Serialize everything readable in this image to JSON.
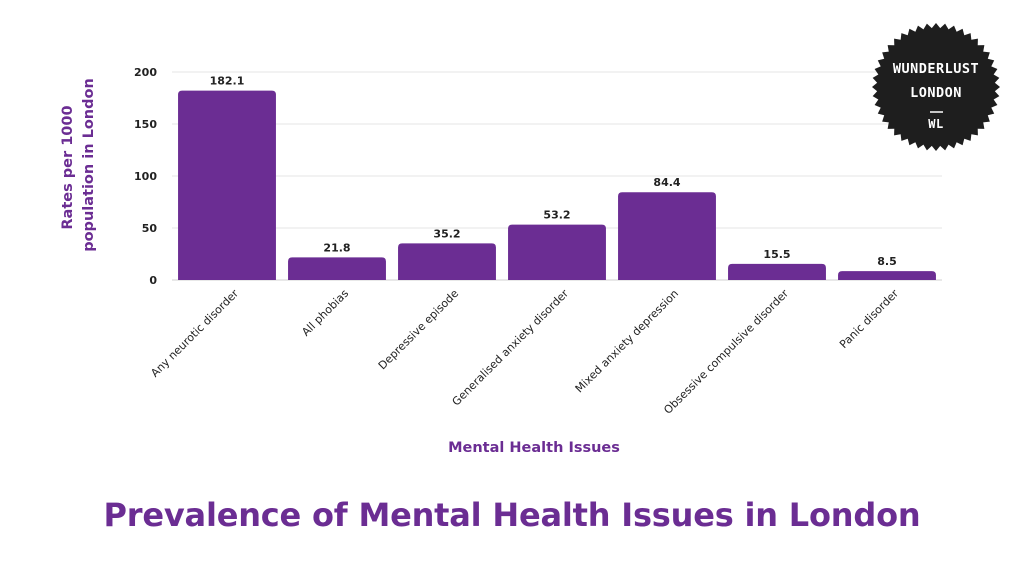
{
  "logo": {
    "line1": "WUNDERLUST",
    "line2": "LONDON",
    "line3": "WL",
    "colors": {
      "background": "#1e1e1e",
      "text": "#ffffff"
    }
  },
  "title": "Prevalence of Mental Health Issues in London",
  "colors": {
    "accent": "#6b2d93",
    "bar": "#6b2d93",
    "grid": "#e6e6e6",
    "text": "#222222"
  },
  "chart_data": {
    "type": "bar",
    "categories": [
      "Any neurotic disorder",
      "All phobias",
      "Depressive episode",
      "Generalised anxiety disorder",
      "Mixed anxiety depression",
      "Obsessive compulsive disorder",
      "Panic disorder"
    ],
    "values": [
      182.1,
      21.8,
      35.2,
      53.2,
      84.4,
      15.5,
      8.5
    ],
    "data_labels": [
      "182.1",
      "21.8",
      "35.2",
      "53.2",
      "84.4",
      "15.5",
      "8.5"
    ],
    "xlabel": "Mental Health Issues",
    "ylabel_lines": [
      "Rates per 1000",
      "population in London"
    ],
    "ylim": [
      0,
      200
    ],
    "yticks": [
      0,
      50,
      100,
      150,
      200
    ],
    "ytick_labels": [
      "0",
      "50",
      "100",
      "150",
      "200"
    ],
    "grid": true,
    "legend": "none"
  }
}
